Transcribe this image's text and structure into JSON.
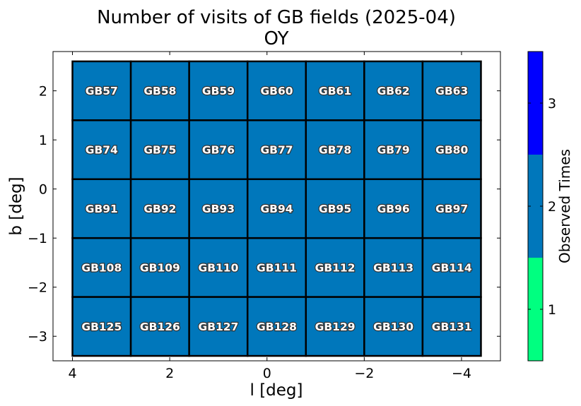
{
  "chart_data": {
    "type": "heatmap",
    "title": "Number of visits of GB fields (2025-04)",
    "subtitle": "OY",
    "xlabel": "l [deg]",
    "ylabel": "b [deg]",
    "xlim": [
      4.4,
      -4.8
    ],
    "ylim": [
      -3.5,
      2.8
    ],
    "xticks": [
      4,
      2,
      0,
      -2,
      -4
    ],
    "xtick_labels": [
      "4",
      "2",
      "0",
      "−2",
      "−4"
    ],
    "yticks": [
      2,
      1,
      0,
      -1,
      -2,
      -3
    ],
    "ytick_labels": [
      "2",
      "1",
      "0",
      "−1",
      "−2",
      "−3"
    ],
    "grid": false,
    "column_l_centers": [
      3.4,
      2.2,
      1.0,
      -0.2,
      -1.4,
      -2.6,
      -3.8
    ],
    "row_b_centers": [
      2.0,
      0.8,
      -0.4,
      -1.6,
      -2.8
    ],
    "cell_size_deg": 1.2,
    "cells": [
      [
        "GB57",
        "GB58",
        "GB59",
        "GB60",
        "GB61",
        "GB62",
        "GB63"
      ],
      [
        "GB74",
        "GB75",
        "GB76",
        "GB77",
        "GB78",
        "GB79",
        "GB80"
      ],
      [
        "GB91",
        "GB92",
        "GB93",
        "GB94",
        "GB95",
        "GB96",
        "GB97"
      ],
      [
        "GB108",
        "GB109",
        "GB110",
        "GB111",
        "GB112",
        "GB113",
        "GB114"
      ],
      [
        "GB125",
        "GB126",
        "GB127",
        "GB128",
        "GB129",
        "GB130",
        "GB131"
      ]
    ],
    "visits": [
      [
        2,
        2,
        2,
        2,
        2,
        2,
        2
      ],
      [
        2,
        2,
        2,
        2,
        2,
        2,
        2
      ],
      [
        2,
        2,
        2,
        2,
        2,
        2,
        2
      ],
      [
        2,
        2,
        2,
        2,
        2,
        2,
        2
      ],
      [
        2,
        2,
        2,
        2,
        2,
        2,
        2
      ]
    ],
    "colorbar": {
      "label": "Observed Times",
      "range": [
        0.5,
        3.5
      ],
      "ticks": [
        1,
        2,
        3
      ],
      "tick_labels": [
        "1",
        "2",
        "3"
      ],
      "levels": [
        {
          "value": 1,
          "color": "#00ff80"
        },
        {
          "value": 2,
          "color": "#0077bb"
        },
        {
          "value": 3,
          "color": "#0000ff"
        }
      ]
    }
  }
}
